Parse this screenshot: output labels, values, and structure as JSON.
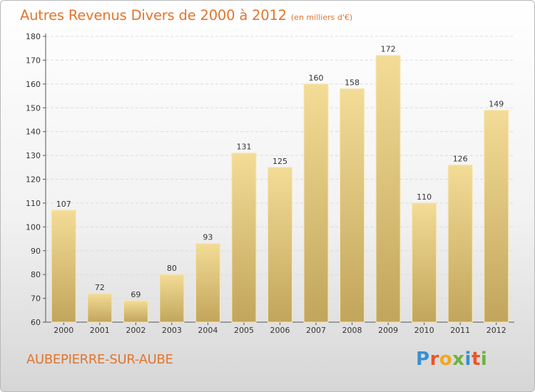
{
  "header": {
    "title": "Autres Revenus Divers de 2000 à 2012",
    "subtitle": "(en milliers d'€)"
  },
  "footer": {
    "place": "AUBEPIERRE-SUR-AUBE",
    "logo_letters": [
      "P",
      "r",
      "o",
      "x",
      "i",
      "t",
      "i"
    ],
    "logo_colors": [
      "#3a8fd0",
      "#e8572a",
      "#f2a81d",
      "#6db33f",
      "#3a8fd0",
      "#e8572a",
      "#6db33f"
    ]
  },
  "chart_data": {
    "type": "bar",
    "title": "Autres Revenus Divers de 2000 à 2012",
    "subtitle": "(en milliers d'€)",
    "categories": [
      "2000",
      "2001",
      "2002",
      "2003",
      "2004",
      "2005",
      "2006",
      "2007",
      "2008",
      "2009",
      "2010",
      "2011",
      "2012"
    ],
    "values": [
      107,
      72,
      69,
      80,
      93,
      131,
      125,
      160,
      158,
      172,
      110,
      126,
      149
    ],
    "value_labels": [
      "107",
      "72",
      "69",
      "80",
      "93",
      "131",
      "125",
      "160",
      "158",
      "172",
      "110",
      "126",
      "149"
    ],
    "ylim": [
      60,
      180
    ],
    "yticks": [
      60,
      70,
      80,
      90,
      100,
      110,
      120,
      130,
      140,
      150,
      160,
      170,
      180
    ],
    "ytick_labels": [
      "60",
      "70",
      "80",
      "90",
      "100",
      "110",
      "120",
      "130",
      "140",
      "150",
      "160",
      "170",
      "180"
    ],
    "xlabel": "",
    "ylabel": "",
    "grid": true,
    "bar_color_top": "#f3dc96",
    "bar_color_bottom": "#c2a55c"
  }
}
